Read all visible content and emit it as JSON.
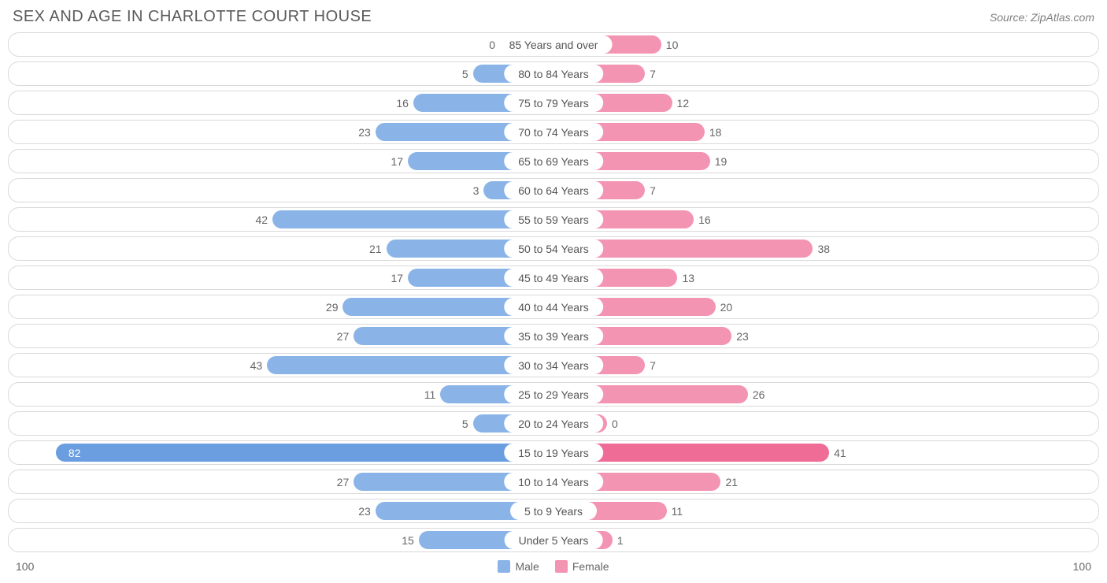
{
  "title": "SEX AND AGE IN CHARLOTTE COURT HOUSE",
  "source": "Source: ZipAtlas.com",
  "chart": {
    "type": "population-pyramid",
    "axis_max": 100,
    "axis_left_label": "100",
    "axis_right_label": "100",
    "track_border_color": "#d9d9d9",
    "track_bg": "#ffffff",
    "label_fontsize": 14,
    "title_fontsize": 20,
    "title_color": "#5a5a5a",
    "inside_label_threshold": 60,
    "male": {
      "label": "Male",
      "base_color": "#8ab4e8",
      "highlight_color": "#6a9ee0"
    },
    "female": {
      "label": "Female",
      "base_color": "#f394b3",
      "highlight_color": "#ef6c97"
    },
    "rows": [
      {
        "category": "85 Years and over",
        "male": 0,
        "female": 10
      },
      {
        "category": "80 to 84 Years",
        "male": 5,
        "female": 7
      },
      {
        "category": "75 to 79 Years",
        "male": 16,
        "female": 12
      },
      {
        "category": "70 to 74 Years",
        "male": 23,
        "female": 18
      },
      {
        "category": "65 to 69 Years",
        "male": 17,
        "female": 19
      },
      {
        "category": "60 to 64 Years",
        "male": 3,
        "female": 7
      },
      {
        "category": "55 to 59 Years",
        "male": 42,
        "female": 16
      },
      {
        "category": "50 to 54 Years",
        "male": 21,
        "female": 38
      },
      {
        "category": "45 to 49 Years",
        "male": 17,
        "female": 13
      },
      {
        "category": "40 to 44 Years",
        "male": 29,
        "female": 20
      },
      {
        "category": "35 to 39 Years",
        "male": 27,
        "female": 23
      },
      {
        "category": "30 to 34 Years",
        "male": 43,
        "female": 7
      },
      {
        "category": "25 to 29 Years",
        "male": 11,
        "female": 26
      },
      {
        "category": "20 to 24 Years",
        "male": 5,
        "female": 0
      },
      {
        "category": "15 to 19 Years",
        "male": 82,
        "female": 41
      },
      {
        "category": "10 to 14 Years",
        "male": 27,
        "female": 21
      },
      {
        "category": "5 to 9 Years",
        "male": 23,
        "female": 11
      },
      {
        "category": "Under 5 Years",
        "male": 15,
        "female": 1
      }
    ]
  }
}
